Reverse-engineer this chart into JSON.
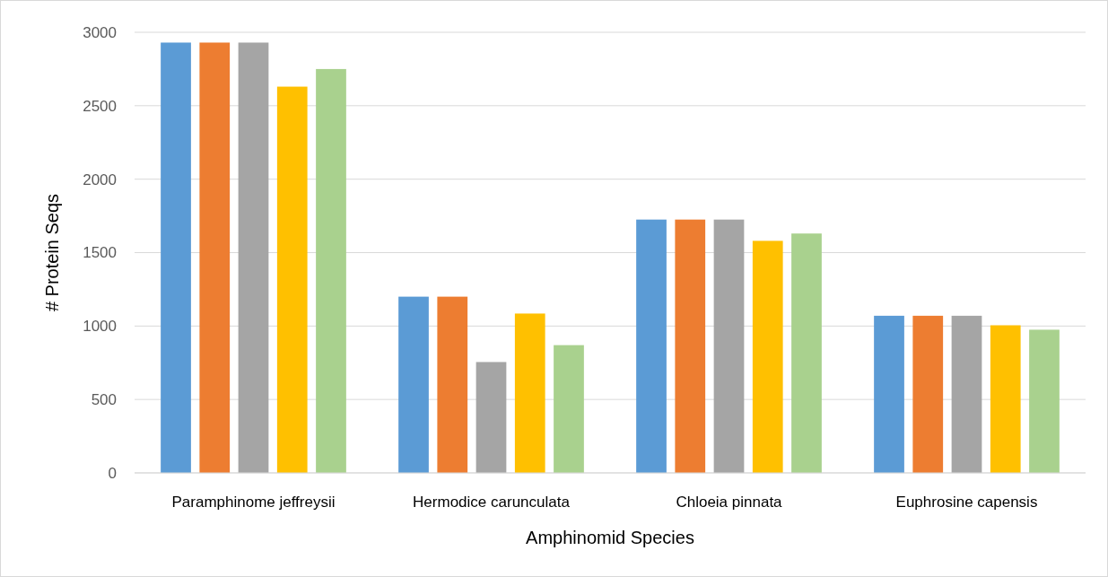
{
  "chart_data": {
    "type": "bar",
    "xlabel": "Amphinomid Species",
    "ylabel": "# Protein Seqs",
    "categories": [
      "Paramphinome jeffreysii",
      "Hermodice carunculata",
      "Chloeia pinnata",
      "Euphrosine capensis"
    ],
    "series": [
      {
        "color": "#5b9bd5",
        "values": [
          2930,
          1200,
          1725,
          1070
        ]
      },
      {
        "color": "#ed7d31",
        "values": [
          2930,
          1200,
          1725,
          1070
        ]
      },
      {
        "color": "#a5a5a5",
        "values": [
          2930,
          755,
          1725,
          1070
        ]
      },
      {
        "color": "#ffc000",
        "values": [
          2630,
          1085,
          1580,
          1005
        ]
      },
      {
        "color": "#a9d18e",
        "values": [
          2750,
          870,
          1630,
          975
        ]
      }
    ],
    "ylim": [
      0,
      3000
    ],
    "yticks": [
      0,
      500,
      1000,
      1500,
      2000,
      2500,
      3000
    ],
    "grid": "y"
  }
}
